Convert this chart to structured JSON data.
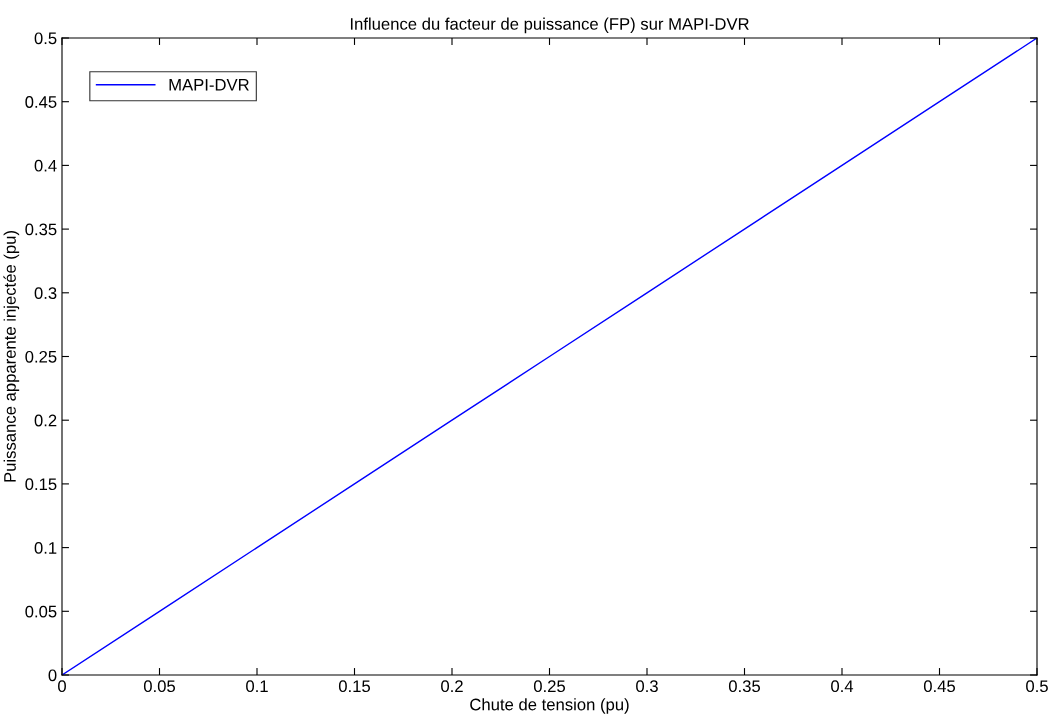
{
  "chart_data": {
    "type": "line",
    "title": "Influence du facteur de puissance (FP) sur MAPI-DVR",
    "xlabel": "Chute de tension (pu)",
    "ylabel": "Puissance apparente injectée (pu)",
    "x": [
      0,
      0.05,
      0.1,
      0.15,
      0.2,
      0.25,
      0.3,
      0.35,
      0.4,
      0.45,
      0.5
    ],
    "series": [
      {
        "name": "MAPI-DVR",
        "color": "#0000ff",
        "values": [
          0,
          0.05,
          0.1,
          0.15,
          0.2,
          0.25,
          0.3,
          0.35,
          0.4,
          0.45,
          0.5
        ]
      }
    ],
    "xlim": [
      0,
      0.5
    ],
    "ylim": [
      0,
      0.5
    ],
    "xticks": [
      0,
      0.05,
      0.1,
      0.15,
      0.2,
      0.25,
      0.3,
      0.35,
      0.4,
      0.45,
      0.5
    ],
    "yticks": [
      0,
      0.05,
      0.1,
      0.15,
      0.2,
      0.25,
      0.3,
      0.35,
      0.4,
      0.45,
      0.5
    ],
    "grid": false,
    "legend": "top left",
    "marker": "none",
    "line_style": "solid"
  }
}
